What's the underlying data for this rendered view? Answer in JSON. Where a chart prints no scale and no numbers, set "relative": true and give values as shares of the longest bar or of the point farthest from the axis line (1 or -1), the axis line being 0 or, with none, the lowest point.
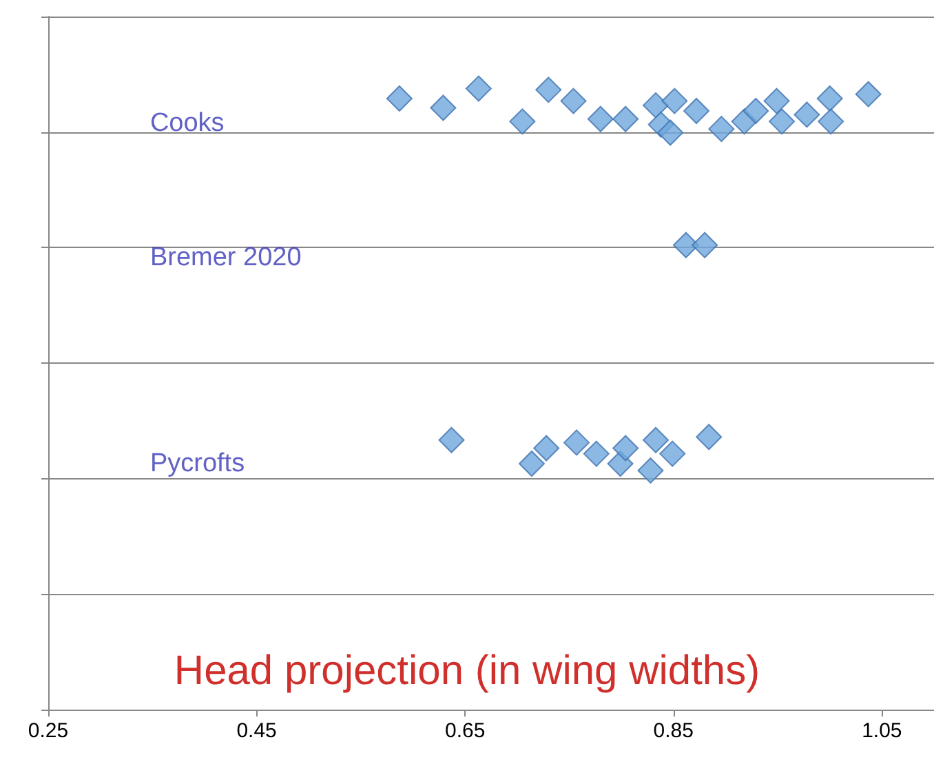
{
  "chart_data": {
    "type": "scatter",
    "xlabel": "Head projection (in wing widths)",
    "relative": true,
    "marker": "diamond",
    "grid": "y",
    "xlim": [
      0.25,
      1.1
    ],
    "xticks": [
      0.25,
      0.45,
      0.65,
      0.85,
      1.05
    ],
    "series": [
      {
        "color": "#6fa8dc",
        "x": [
          0.587,
          0.629,
          0.663,
          0.705,
          0.73,
          0.754,
          0.78,
          0.804,
          0.833,
          0.838,
          0.851,
          0.847,
          0.872,
          0.896,
          0.918,
          0.929,
          0.949,
          0.954,
          0.978,
          1.0,
          1.001,
          1.037
        ],
        "values": [
          0.984,
          0.969,
          1.0,
          0.947,
          0.998,
          0.98,
          0.951,
          0.951,
          0.973,
          0.942,
          0.98,
          0.929,
          0.964,
          0.935,
          0.947,
          0.964,
          0.98,
          0.947,
          0.958,
          0.984,
          0.947,
          0.991
        ]
      },
      {
        "color": "#6fa8dc",
        "x": [
          0.862,
          0.88
        ],
        "values": [
          0.748,
          0.748
        ]
      },
      {
        "color": "#6fa8dc",
        "x": [
          0.637,
          0.714,
          0.728,
          0.757,
          0.776,
          0.799,
          0.804,
          0.828,
          0.833,
          0.849,
          0.884
        ],
        "values": [
          0.434,
          0.396,
          0.421,
          0.43,
          0.412,
          0.396,
          0.421,
          0.385,
          0.434,
          0.412,
          0.439
        ]
      }
    ],
    "annotations": [
      "Cooks",
      "Bremer 2020",
      "Pycrofts"
    ]
  }
}
